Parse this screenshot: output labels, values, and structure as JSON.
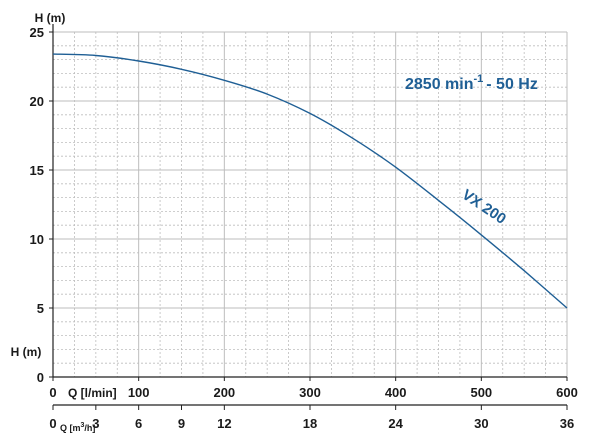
{
  "chart_data": {
    "type": "line",
    "ylabel": "H (m)",
    "ylabel_lower": "H (m)",
    "xlabel": "Q [l/min]",
    "xlabel_secondary": "Q [m³/h]",
    "xlabel_secondary_base": "Q [m",
    "xlabel_secondary_sup": "3",
    "xlabel_secondary_tail": "/h]",
    "annotation_speed_main": "2850 min",
    "annotation_speed_sup": "-1",
    "annotation_speed_tail": "-  50 Hz",
    "xlim": [
      0,
      600
    ],
    "ylim": [
      0,
      25
    ],
    "grid": true,
    "x_ticks": [
      "0",
      "100",
      "200",
      "300",
      "400",
      "500",
      "600"
    ],
    "x_tick_values": [
      0,
      100,
      200,
      300,
      400,
      500,
      600
    ],
    "y_ticks": [
      "0",
      "5",
      "10",
      "15",
      "20",
      "25"
    ],
    "y_tick_values": [
      0,
      5,
      10,
      15,
      20,
      25
    ],
    "secondary_ticks": [
      "0",
      "3",
      "6",
      "9",
      "12",
      "18",
      "24",
      "30",
      "36"
    ],
    "secondary_tick_values": [
      0,
      3,
      6,
      9,
      12,
      18,
      24,
      30,
      36
    ],
    "series": [
      {
        "name": "VX 200",
        "color": "#1f5f95",
        "x": [
          0,
          50,
          100,
          150,
          200,
          250,
          300,
          350,
          400,
          450,
          500,
          550,
          600
        ],
        "y": [
          23.4,
          23.3,
          22.9,
          22.3,
          21.5,
          20.5,
          19.1,
          17.3,
          15.2,
          12.8,
          10.3,
          7.7,
          5.0
        ]
      }
    ]
  }
}
